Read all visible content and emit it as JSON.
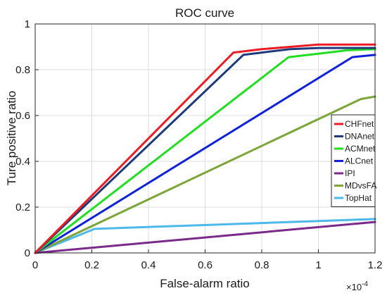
{
  "chart_data": {
    "type": "line",
    "title": "ROC curve",
    "xlabel": "False-alarm ratio",
    "ylabel": "Ture positive ratio",
    "xlim": [
      0,
      1.2
    ],
    "ylim": [
      0,
      1
    ],
    "x_ticks": [
      0,
      0.2,
      0.4,
      0.6,
      0.8,
      1,
      1.2
    ],
    "x_tick_labels": [
      "0",
      "0.2",
      "0.4",
      "0.6",
      "0.8",
      "1",
      "1.2"
    ],
    "y_ticks": [
      0,
      0.2,
      0.4,
      0.6,
      0.8,
      1
    ],
    "y_tick_labels": [
      "0",
      "0.2",
      "0.4",
      "0.6",
      "0.8",
      "1"
    ],
    "x_exponent_label": "×10",
    "x_exponent_power": "-4",
    "grid": true,
    "legend_position": "right",
    "series": [
      {
        "name": "CHFnet",
        "color": "#ed1c24",
        "label_color": "#ed1c24",
        "points": [
          [
            0,
            0
          ],
          [
            0.7,
            0.875
          ],
          [
            0.8,
            0.89
          ],
          [
            0.9,
            0.9
          ],
          [
            1.0,
            0.91
          ],
          [
            1.2,
            0.91
          ]
        ]
      },
      {
        "name": "DNAnet",
        "color": "#1f3a7a",
        "label_color": "#1a1a1a",
        "points": [
          [
            0,
            0
          ],
          [
            0.735,
            0.865
          ],
          [
            0.8,
            0.875
          ],
          [
            0.9,
            0.89
          ],
          [
            1.0,
            0.895
          ],
          [
            1.2,
            0.895
          ]
        ]
      },
      {
        "name": "ACMnet",
        "color": "#22dd22",
        "label_color": "#1a1a1a",
        "points": [
          [
            0,
            0
          ],
          [
            0.895,
            0.855
          ],
          [
            1.0,
            0.87
          ],
          [
            1.1,
            0.885
          ],
          [
            1.2,
            0.89
          ]
        ]
      },
      {
        "name": "ALCnet",
        "color": "#0f22d8",
        "label_color": "#1a1a1a",
        "points": [
          [
            0,
            0
          ],
          [
            1.12,
            0.855
          ],
          [
            1.2,
            0.865
          ]
        ]
      },
      {
        "name": "IPI",
        "color": "#7a2a8a",
        "label_color": "#1a1a1a",
        "points": [
          [
            0,
            0
          ],
          [
            1.2,
            0.135
          ]
        ]
      },
      {
        "name": "MDvsFA",
        "color": "#7ca53a",
        "label_color": "#1a1a1a",
        "points": [
          [
            0,
            0
          ],
          [
            1.15,
            0.672
          ],
          [
            1.2,
            0.683
          ]
        ]
      },
      {
        "name": "TopHat",
        "color": "#4db8ea",
        "label_color": "#1a1a1a",
        "points": [
          [
            0,
            0
          ],
          [
            0.21,
            0.105
          ],
          [
            1.2,
            0.148
          ]
        ]
      }
    ]
  }
}
